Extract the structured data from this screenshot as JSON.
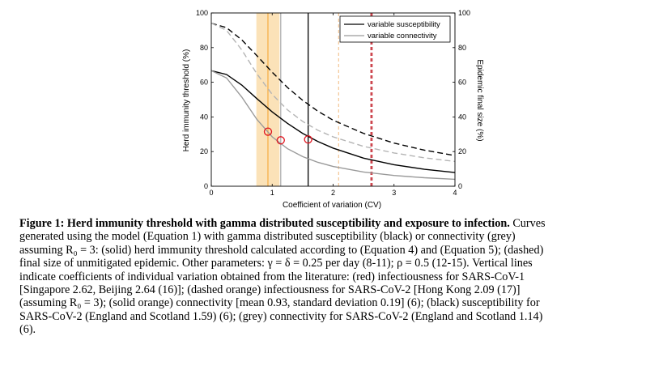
{
  "chart_data": {
    "type": "line",
    "xlabel": "Coefficient of variation (CV)",
    "ylabel_left": "Herd immunity threshold (%)",
    "ylabel_right": "Epidemic final size (%)",
    "xlim": [
      0,
      4
    ],
    "ylim": [
      0,
      100
    ],
    "x_ticks": [
      "0",
      "1",
      "2",
      "3",
      "4"
    ],
    "y_ticks": [
      "0",
      "20",
      "40",
      "60",
      "80",
      "100"
    ],
    "legend": {
      "position": "top-right",
      "entries": [
        {
          "label": "variable susceptibility",
          "color": "#000000"
        },
        {
          "label": "variable connectivity",
          "color": "#9a9a9a"
        }
      ]
    },
    "shaded_band": {
      "x": [
        0.74,
        1.12
      ],
      "color": "#fbe2b8",
      "meaning": "connectivity mean 0.93, sd 0.19"
    },
    "vertical_lines": [
      {
        "x": 2.62,
        "color": "#c0141e",
        "style": "dashed"
      },
      {
        "x": 2.64,
        "color": "#c0141e",
        "style": "dashed"
      },
      {
        "x": 2.09,
        "color": "#f3c08a",
        "style": "dashed"
      },
      {
        "x": 0.93,
        "color": "#f7b04a",
        "style": "solid"
      },
      {
        "x": 1.59,
        "color": "#000000",
        "style": "solid"
      },
      {
        "x": 1.14,
        "color": "#b0b0b0",
        "style": "solid"
      }
    ],
    "series": [
      {
        "name": "variable susceptibility",
        "kind": "herd-immunity",
        "color": "#000000",
        "dash": false,
        "x": [
          0,
          0.25,
          0.5,
          0.75,
          1,
          1.25,
          1.5,
          1.75,
          2,
          2.5,
          3,
          3.5,
          4
        ],
        "y": [
          66.7,
          64.5,
          58.4,
          50.5,
          42.9,
          36.3,
          30.5,
          25.8,
          22,
          16.2,
          12.4,
          9.8,
          7.9
        ]
      },
      {
        "name": "variable connectivity",
        "kind": "herd-immunity",
        "color": "#9a9a9a",
        "dash": false,
        "x": [
          0,
          0.25,
          0.5,
          0.75,
          1,
          1.25,
          1.5,
          1.75,
          2,
          2.5,
          3,
          3.5,
          4
        ],
        "y": [
          66.7,
          62.5,
          51.5,
          38.5,
          28.5,
          21.7,
          17.1,
          13.8,
          11.4,
          8.2,
          6.2,
          4.9,
          4
        ]
      },
      {
        "name": "variable susceptibility",
        "kind": "final-size",
        "color": "#000000",
        "dash": true,
        "x": [
          0,
          0.25,
          0.5,
          0.75,
          1,
          1.25,
          1.5,
          1.75,
          2,
          2.5,
          3,
          3.5,
          4
        ],
        "y": [
          94.1,
          91.5,
          84.5,
          75.3,
          65.8,
          57,
          49.6,
          43.3,
          38.1,
          30.5,
          24.9,
          20.8,
          17.7
        ]
      },
      {
        "name": "variable connectivity",
        "kind": "final-size",
        "color": "#b4b4b4",
        "dash": true,
        "x": [
          0,
          0.25,
          0.5,
          0.75,
          1,
          1.25,
          1.5,
          1.75,
          2,
          2.5,
          3,
          3.5,
          4
        ],
        "y": [
          94.1,
          90,
          78.7,
          64.8,
          53,
          44.1,
          37.4,
          32.3,
          28.5,
          23,
          19.2,
          16.4,
          14.3
        ]
      }
    ],
    "markers": [
      {
        "x": 0.93,
        "y": 31.5,
        "color": "#e0141e"
      },
      {
        "x": 1.14,
        "y": 26.5,
        "color": "#e0141e"
      },
      {
        "x": 1.59,
        "y": 27.0,
        "color": "#e0141e"
      }
    ]
  },
  "caption": {
    "lines": [
      {
        "bold": "Figure 1: Herd immunity threshold with gamma distributed susceptibility and exposure to infection.",
        "text": " Curves"
      },
      {
        "bold": "",
        "text": "generated using the model (Equation 1) with gamma distributed susceptibility (black) or connectivity (grey)"
      },
      {
        "bold": "",
        "text": "assuming R₀ = 3: (solid) herd immunity threshold calculated according to (Equation 4) and (Equation 5); (dashed)"
      },
      {
        "bold": "",
        "text": "final size of unmitigated epidemic. Other parameters: γ = δ = 0.25 per day (8-11); ρ = 0.5 (12-15). Vertical lines"
      },
      {
        "bold": "",
        "text": "indicate coefficients of individual variation obtained from the literature: (red) infectiousness for SARS-CoV-1"
      },
      {
        "bold": "",
        "text": "[Singapore 2.62, Beijing 2.64 (16)]; (dashed orange) infectiousness for SARS-CoV-2 [Hong Kong 2.09 (17)]"
      },
      {
        "bold": "",
        "text": "(assuming R₀ = 3); (solid orange) connectivity [mean 0.93, standard deviation 0.19] (6); (black) susceptibility for"
      },
      {
        "bold": "",
        "text": "SARS-CoV-2 (England and Scotland 1.59) (6); (grey) connectivity for SARS-CoV-2 (England and Scotland 1.14)"
      },
      {
        "bold": "",
        "text": "(6)."
      }
    ]
  }
}
